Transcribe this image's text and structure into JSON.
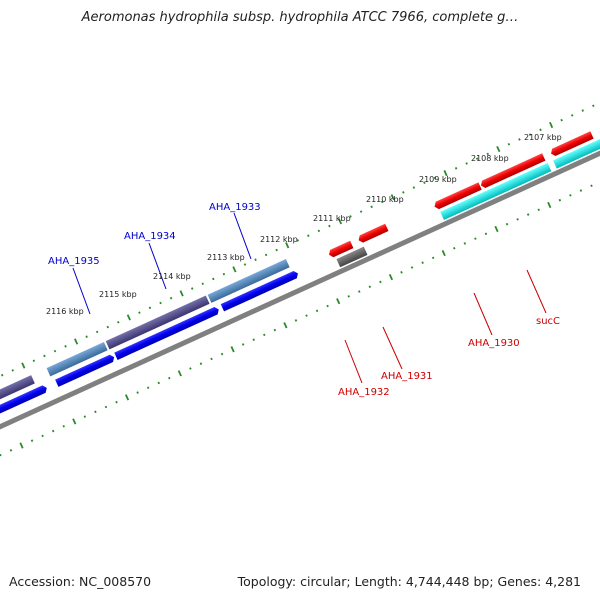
{
  "title": "Aeromonas hydrophila subsp. hydrophila ATCC 7966, complete g…",
  "footer": {
    "accession": "Accession: NC_008570",
    "summary": "Topology: circular; Length: 4,744,448 bp; Genes: 4,281"
  },
  "colors": {
    "backbone": "#808080",
    "tick": "#2a8a2a",
    "cds_forward": "#0000ee",
    "cds_reverse": "#ee0000",
    "gene_dark": "#55508f",
    "gene_steel": "#4f86b8",
    "gene_cyan": "#00eeee",
    "gene_gray": "#666666",
    "label_blue": "#0000cc",
    "label_red": "#cc0000"
  },
  "scale_labels": [
    "2116 kbp",
    "2115 kbp",
    "2114 kbp",
    "2113 kbp",
    "2112 kbp",
    "2111 kbp",
    "2110 kbp",
    "2109 kbp",
    "2108 kbp",
    "2107 kbp"
  ],
  "gene_labels": [
    {
      "text": "AHA_1935",
      "strand": "forward"
    },
    {
      "text": "AHA_1934",
      "strand": "forward"
    },
    {
      "text": "AHA_1933",
      "strand": "forward"
    },
    {
      "text": "AHA_1932",
      "strand": "reverse"
    },
    {
      "text": "AHA_1931",
      "strand": "reverse"
    },
    {
      "text": "AHA_1930",
      "strand": "reverse"
    },
    {
      "text": "sucC",
      "strand": "reverse"
    }
  ]
}
